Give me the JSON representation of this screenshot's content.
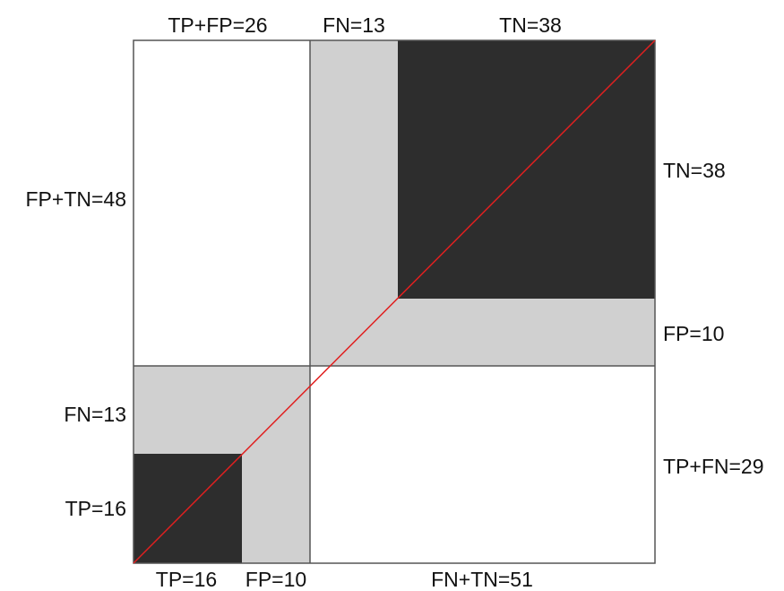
{
  "colors": {
    "background": "#ffffff",
    "light_region": "#d0d0d0",
    "dark_region": "#2d2d2d",
    "border": "#555555",
    "diagonal": "#e02020"
  },
  "counts": {
    "TP": 16,
    "FP": 10,
    "FN": 13,
    "TN": 38
  },
  "labels": {
    "top": {
      "tp_fp": "TP+FP=26",
      "fn": "FN=13",
      "tn": "TN=38"
    },
    "left": {
      "fp_tn": "FP+TN=48",
      "fn": "FN=13",
      "tp": "TP=16"
    },
    "right": {
      "tn": "TN=38",
      "fp": "FP=10",
      "tp_fn": "TP+FN=29"
    },
    "bottom": {
      "tp": "TP=16",
      "fp": "FP=10",
      "fn_tn": "FN+TN=51"
    }
  }
}
